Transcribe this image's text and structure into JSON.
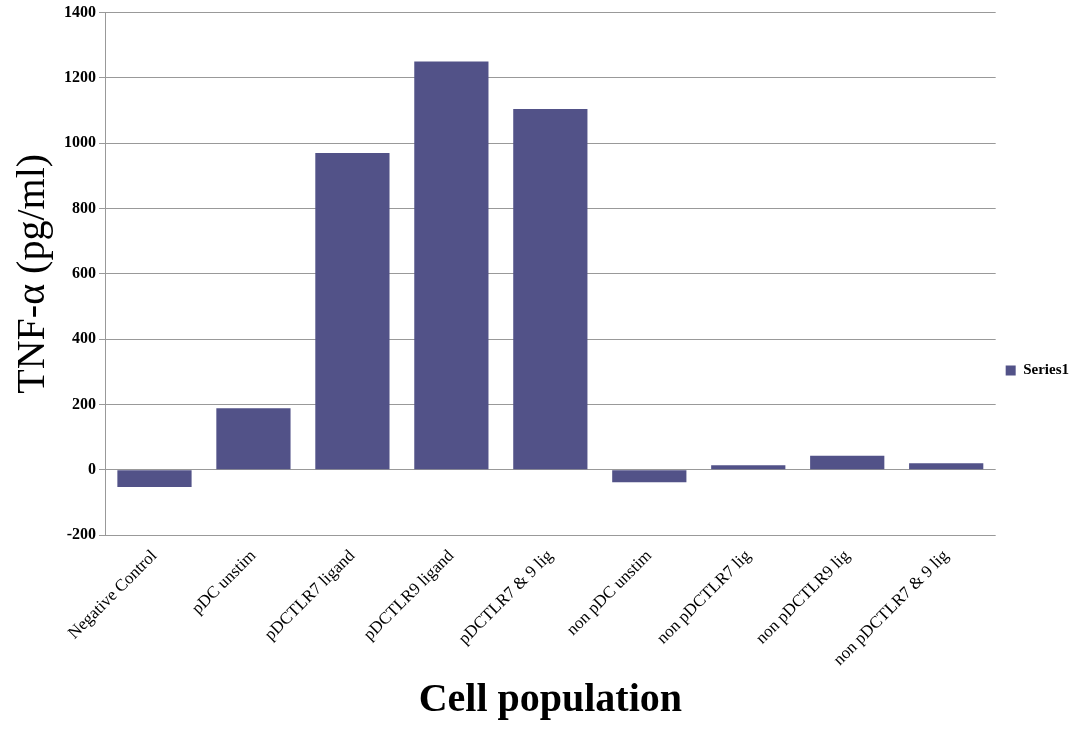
{
  "chart_data": {
    "type": "bar",
    "xlabel": "Cell population",
    "ylabel": "TNF-α (pg/ml)",
    "categories": [
      "Negative Control",
      "pDC unstim",
      "pDCTLR7 ligand",
      "pDCTLR9 ligand",
      "pDCTLR7 & 9 lig",
      "non pDC unstim",
      "non pDCTLR7 lig",
      "non pDCTLR9 lig",
      "non pDCTLR7 & 9 lig"
    ],
    "series": [
      {
        "name": "Series1",
        "color": "#525288",
        "values": [
          -53,
          188,
          970,
          1250,
          1105,
          -38,
          14,
          43,
          20
        ]
      }
    ],
    "ylim": [
      -200,
      1400
    ],
    "yticks": [
      -200,
      0,
      200,
      400,
      600,
      800,
      1000,
      1200,
      1400
    ],
    "grid": "y",
    "legend": "right"
  }
}
